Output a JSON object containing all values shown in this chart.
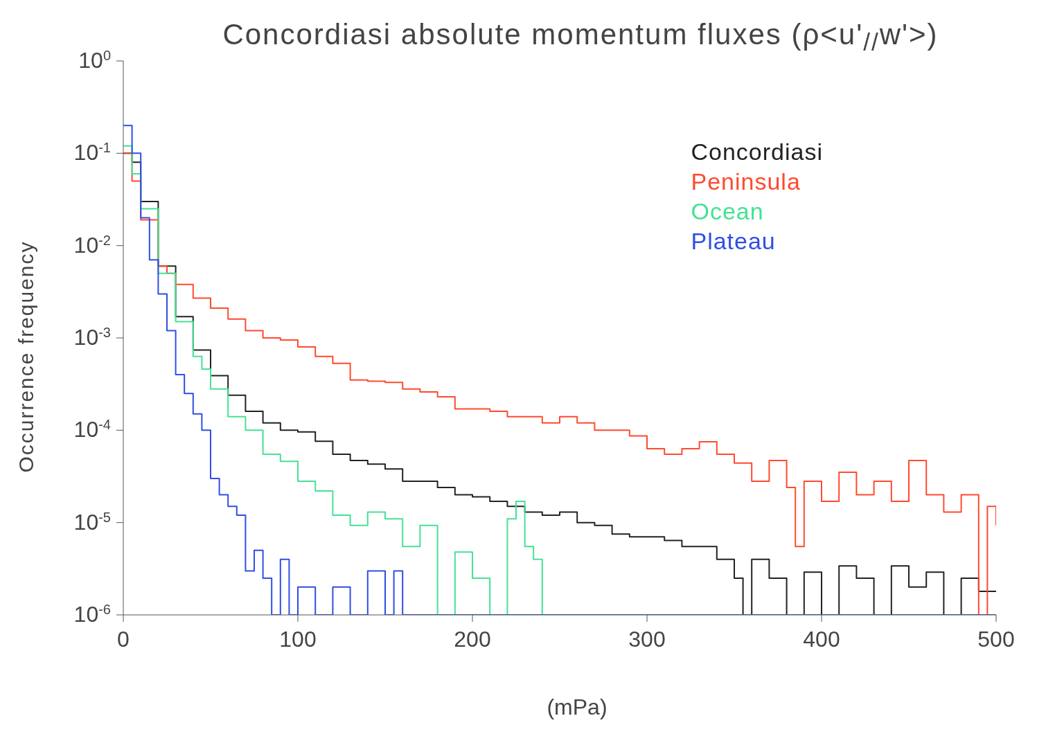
{
  "chart_data": {
    "type": "step",
    "title": "Concordiasi absolute momentum fluxes (ρ<u'$_{//}$w'>)",
    "xlabel": "(mPa)",
    "ylabel": "Occurrence frequency",
    "log": "y",
    "legend": "top right",
    "xlim": [
      0,
      500
    ],
    "xticks": [
      0,
      100,
      200,
      300,
      400,
      500
    ],
    "ylim": [
      1e-06,
      1
    ],
    "yticks": [
      {
        "value": 1,
        "label": "10$^{0}$"
      },
      {
        "value": 0.1,
        "label": "10$^{-1}$"
      },
      {
        "value": 0.01,
        "label": "10$^{-2}$"
      },
      {
        "value": 0.001,
        "label": "10$^{-3}$"
      },
      {
        "value": 0.0001,
        "label": "10$^{-4}$"
      },
      {
        "value": 1e-05,
        "label": "10$^{-5}$"
      },
      {
        "value": 1e-06,
        "label": "10$^{-6}$"
      }
    ],
    "series": [
      {
        "name": "Concordiasi",
        "color": "#222222",
        "x": [
          0,
          5,
          10,
          20,
          30,
          40,
          50,
          60,
          70,
          80,
          90,
          100,
          110,
          120,
          130,
          140,
          150,
          160,
          170,
          180,
          190,
          200,
          210,
          220,
          230,
          240,
          250,
          260,
          270,
          280,
          290,
          300,
          310,
          320,
          330,
          340,
          350,
          355,
          360,
          370,
          380,
          390,
          400,
          410,
          420,
          430,
          440,
          450,
          460,
          470,
          480,
          490,
          500
        ],
        "values": [
          0.1,
          0.08,
          0.03,
          0.006,
          0.0017,
          0.00074,
          0.00039,
          0.00024,
          0.00016,
          0.00012,
          0.0001,
          9.6e-05,
          7.6e-05,
          5.5e-05,
          4.7e-05,
          4.3e-05,
          3.8e-05,
          2.8e-05,
          2.8e-05,
          2.4e-05,
          2e-05,
          1.9e-05,
          1.7e-05,
          1.5e-05,
          1.3e-05,
          1.2e-05,
          1.3e-05,
          1e-05,
          9.3e-06,
          7.5e-06,
          7e-06,
          7e-06,
          6.4e-06,
          5.5e-06,
          5.5e-06,
          4e-06,
          2.5e-06,
          1e-06,
          4e-06,
          2.5e-06,
          1e-06,
          2.9e-06,
          1e-06,
          3.4e-06,
          2.5e-06,
          1e-06,
          3.4e-06,
          2e-06,
          2.9e-06,
          1e-06,
          2.5e-06,
          1.8e-06,
          1.8e-06
        ]
      },
      {
        "name": "Peninsula",
        "color": "#ff4a2e",
        "x": [
          0,
          5,
          10,
          20,
          25,
          30,
          40,
          50,
          60,
          70,
          80,
          90,
          100,
          110,
          120,
          130,
          140,
          150,
          160,
          170,
          180,
          190,
          200,
          210,
          220,
          230,
          240,
          250,
          260,
          270,
          280,
          290,
          300,
          310,
          320,
          330,
          340,
          350,
          360,
          370,
          380,
          385,
          390,
          400,
          410,
          420,
          430,
          440,
          450,
          460,
          470,
          480,
          490,
          495,
          500
        ],
        "values": [
          0.1,
          0.05,
          0.019,
          0.006,
          0.005,
          0.0038,
          0.0027,
          0.0021,
          0.0016,
          0.0012,
          0.001,
          0.00095,
          0.0008,
          0.00063,
          0.00053,
          0.00035,
          0.00034,
          0.00033,
          0.00028,
          0.00026,
          0.00023,
          0.00017,
          0.00017,
          0.00016,
          0.00014,
          0.00014,
          0.00012,
          0.00014,
          0.00012,
          0.0001,
          0.0001,
          8.7e-05,
          6.3e-05,
          5.5e-05,
          6.3e-05,
          7.5e-05,
          5.5e-05,
          4.4e-05,
          2.8e-05,
          4.7e-05,
          2.4e-05,
          5.5e-06,
          2.8e-05,
          1.7e-05,
          3.5e-05,
          2e-05,
          2.8e-05,
          1.7e-05,
          4.7e-05,
          2e-05,
          1.3e-05,
          2e-05,
          1e-06,
          1.5e-05,
          9.3e-06
        ]
      },
      {
        "name": "Ocean",
        "color": "#44e294",
        "x": [
          0,
          5,
          10,
          20,
          30,
          40,
          45,
          50,
          60,
          70,
          80,
          90,
          100,
          110,
          120,
          130,
          140,
          150,
          160,
          170,
          180,
          190,
          200,
          210,
          220,
          225,
          230,
          235,
          240
        ],
        "values": [
          0.12,
          0.06,
          0.025,
          0.005,
          0.0015,
          0.00063,
          0.00046,
          0.00028,
          0.00014,
          0.0001,
          5.5e-05,
          4.6e-05,
          2.8e-05,
          2.2e-05,
          1.2e-05,
          9.3e-06,
          1.3e-05,
          1.1e-05,
          5.5e-06,
          9.3e-06,
          1e-06,
          4.8e-06,
          2.5e-06,
          1e-06,
          1.1e-05,
          1.7e-05,
          5.5e-06,
          4e-06,
          1e-06
        ]
      },
      {
        "name": "Plateau",
        "color": "#2f4ee6",
        "x": [
          0,
          5,
          10,
          15,
          20,
          25,
          30,
          35,
          40,
          45,
          50,
          55,
          60,
          65,
          70,
          75,
          80,
          85,
          90,
          95,
          100,
          110,
          120,
          130,
          140,
          150,
          155,
          160,
          500
        ],
        "values": [
          0.2,
          0.1,
          0.02,
          0.007,
          0.003,
          0.0012,
          0.0004,
          0.00025,
          0.00015,
          0.0001,
          3e-05,
          2e-05,
          1.5e-05,
          1.2e-05,
          3e-06,
          5e-06,
          2.5e-06,
          1e-06,
          4e-06,
          1e-06,
          2e-06,
          1e-06,
          2e-06,
          1e-06,
          3e-06,
          1e-06,
          3e-06,
          1e-06,
          1e-06
        ]
      }
    ]
  }
}
